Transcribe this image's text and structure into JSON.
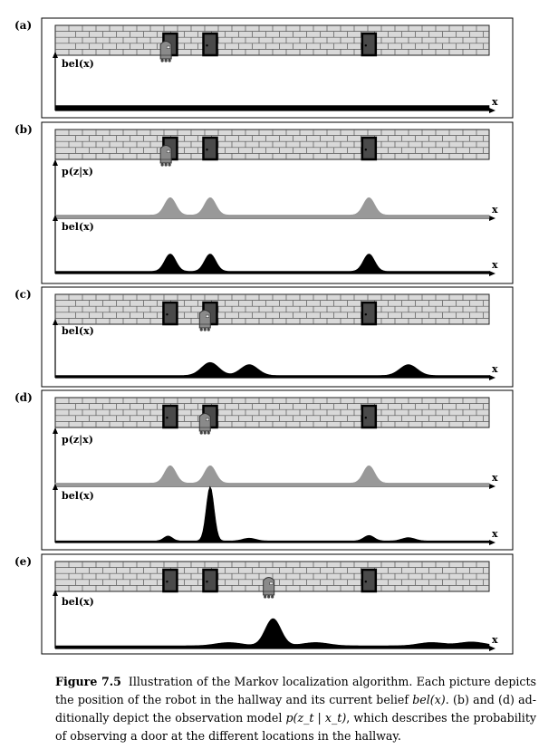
{
  "panels": [
    {
      "label": "(a)",
      "robot_pos": 0.255,
      "plots": [
        {
          "ylabel": "bel(x)",
          "xlabel": "x",
          "color": "#000000",
          "curve": {
            "base": 0.09,
            "peaks": []
          }
        }
      ]
    },
    {
      "label": "(b)",
      "robot_pos": 0.255,
      "plots": [
        {
          "ylabel": "p(z|x)",
          "xlabel": "x",
          "color": "#999999",
          "curve": {
            "base": 0.06,
            "peaks": [
              [
                0.265,
                0.32,
                0.013
              ],
              [
                0.357,
                0.32,
                0.013
              ],
              [
                0.723,
                0.32,
                0.013
              ]
            ]
          }
        },
        {
          "ylabel": "bel(x)",
          "xlabel": "x",
          "color": "#000000",
          "curve": {
            "base": 0.04,
            "peaks": [
              [
                0.265,
                0.32,
                0.013
              ],
              [
                0.357,
                0.32,
                0.013
              ],
              [
                0.723,
                0.32,
                0.013
              ]
            ]
          }
        }
      ]
    },
    {
      "label": "(c)",
      "robot_pos": 0.345,
      "plots": [
        {
          "ylabel": "bel(x)",
          "xlabel": "x",
          "color": "#000000",
          "curve": {
            "base": 0.04,
            "peaks": [
              [
                0.357,
                0.24,
                0.02
              ],
              [
                0.447,
                0.2,
                0.02
              ],
              [
                0.814,
                0.2,
                0.02
              ]
            ]
          }
        }
      ]
    },
    {
      "label": "(d)",
      "robot_pos": 0.345,
      "plots": [
        {
          "ylabel": "p(z|x)",
          "xlabel": "x",
          "color": "#999999",
          "curve": {
            "base": 0.06,
            "peaks": [
              [
                0.265,
                0.32,
                0.013
              ],
              [
                0.357,
                0.32,
                0.013
              ],
              [
                0.723,
                0.32,
                0.013
              ]
            ]
          }
        },
        {
          "ylabel": "bel(x)",
          "xlabel": "x",
          "color": "#000000",
          "curve": {
            "base": 0.03,
            "peaks": [
              [
                0.26,
                0.09,
                0.01
              ],
              [
                0.357,
                1.0,
                0.009
              ],
              [
                0.447,
                0.05,
                0.015
              ],
              [
                0.723,
                0.1,
                0.012
              ],
              [
                0.814,
                0.06,
                0.015
              ]
            ]
          }
        }
      ]
    },
    {
      "label": "(e)",
      "robot_pos": 0.492,
      "plots": [
        {
          "ylabel": "bel(x)",
          "xlabel": "x",
          "color": "#000000",
          "curve": {
            "base": 0.05,
            "peaks": [
              [
                0.4,
                0.06,
                0.03
              ],
              [
                0.502,
                0.5,
                0.018
              ],
              [
                0.6,
                0.06,
                0.03
              ],
              [
                0.867,
                0.06,
                0.03
              ],
              [
                0.96,
                0.07,
                0.03
              ]
            ]
          }
        }
      ]
    }
  ],
  "door_positions": [
    0.265,
    0.357,
    0.723
  ],
  "caption": {
    "figure_label": "Figure 7.5",
    "line1": "Illustration of the Markov localization algorithm. Each picture depicts",
    "line2_pre": "the position of the robot in the hallway and its current belief ",
    "line2_math": "bel(x)",
    "line2_post": ". (b) and (d) ad-",
    "line3_pre": "ditionally depict the observation model ",
    "line3_math": "p(z_t | x_t)",
    "line3_post": ", which describes the probability of",
    "line4": "observing a door at the different locations in the hallway."
  }
}
